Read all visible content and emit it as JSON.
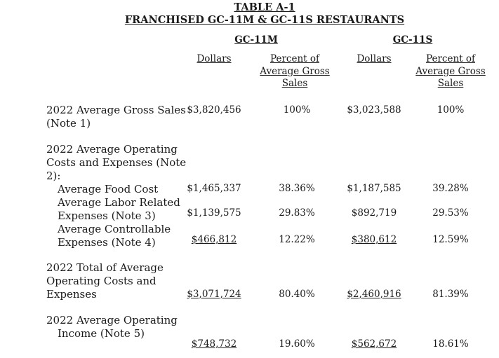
{
  "title_line1": "TABLE A-1",
  "title_line2": "FRANCHISED GC-11M & GC-11S RESTAURANTS",
  "groups": [
    {
      "name": "GC-11M",
      "col_dollars": "Dollars",
      "col_percent": "Percent of Average Gross Sales"
    },
    {
      "name": "GC-11S",
      "col_dollars": "Dollars",
      "col_percent": "Percent of Average Gross Sales"
    }
  ],
  "rows": {
    "gross_sales": {
      "label_1": "2022 Average Gross Sales",
      "label_2": "(Note 1)",
      "m_dollars": "$3,820,456",
      "m_percent": "100%",
      "s_dollars": "$3,023,588",
      "s_percent": "100%"
    },
    "operating_costs_header": {
      "label_1": "2022 Average Operating",
      "label_2": "Costs and Expenses (Note",
      "label_3": "2):"
    },
    "food_cost": {
      "label_1": "Average Food Cost",
      "m_dollars": "$1,465,337",
      "m_percent": "38.36%",
      "s_dollars": "$1,187,585",
      "s_percent": "39.28%"
    },
    "labor": {
      "label_1": "Average Labor Related",
      "label_2": "Expenses (Note 3)",
      "m_dollars": "$1,139,575",
      "m_percent": "29.83%",
      "s_dollars": "$892,719",
      "s_percent": "29.53%"
    },
    "controllable": {
      "label_1": "Average Controllable",
      "label_2": "Expenses (Note 4)",
      "m_dollars": "$466,812",
      "m_percent": "12.22%",
      "s_dollars": "$380,612",
      "s_percent": "12.59%"
    },
    "total_costs": {
      "label_1": "2022 Total of Average",
      "label_2": "Operating Costs and",
      "label_3": "Expenses",
      "m_dollars": "$3,071,724",
      "m_percent": "80.40%",
      "s_dollars": "$2,460,916",
      "s_percent": "81.39%"
    },
    "operating_income": {
      "label_1": "2022 Average Operating",
      "label_2": "Income (Note 5)",
      "m_dollars": "$748,732",
      "m_percent": "19.60%",
      "s_dollars": "$562,672",
      "s_percent": "18.61%"
    }
  }
}
